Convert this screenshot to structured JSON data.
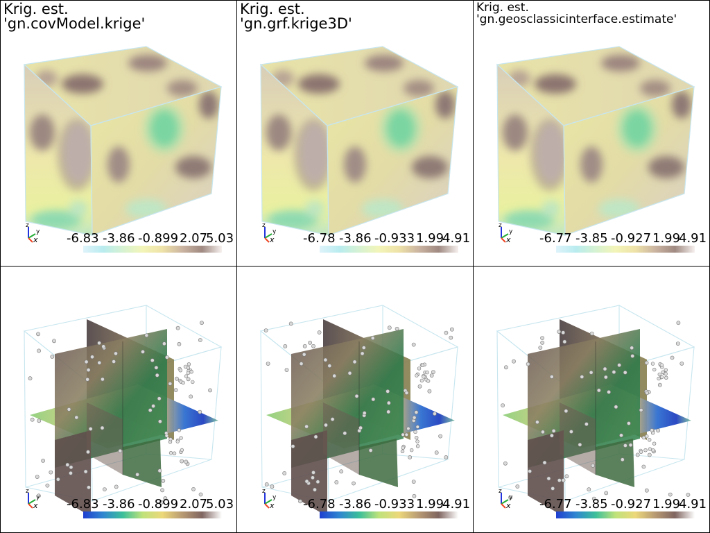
{
  "panels": [
    {
      "title_line1": "Krig. est.",
      "title_line2": "'gn.covModel.krige'",
      "ticks": [
        "-6.83",
        "-3.86",
        "-0.899",
        "2.07",
        "5.03"
      ],
      "colorbar": [
        "#dff3fb",
        "#b9ecef",
        "#d6f2d2",
        "#f3f5b8",
        "#eee2a8",
        "#cbb4a1",
        "#a08a82",
        "#f6f0ee"
      ],
      "style": "pale cube"
    },
    {
      "title_line1": "Krig. est.",
      "title_line2": "'gn.grf.krige3D'",
      "ticks": [
        "-6.78",
        "-3.86",
        "-0.933",
        "1.99",
        "4.91"
      ],
      "colorbar": [
        "#dff3fb",
        "#b9ecef",
        "#d6f2d2",
        "#f3f5b8",
        "#eee2a8",
        "#cbb4a1",
        "#a08a82",
        "#f6f0ee"
      ],
      "style": "pale cube"
    },
    {
      "title_line1": "Krig. est.",
      "title_line2": "'gn.geosclassicinterface.estimate'",
      "ticks": [
        "-6.77",
        "-3.85",
        "-0.927",
        "1.99",
        "4.91"
      ],
      "colorbar": [
        "#dff3fb",
        "#b9ecef",
        "#d6f2d2",
        "#f3f5b8",
        "#eee2a8",
        "#cbb4a1",
        "#a08a82",
        "#f6f0ee"
      ],
      "style": "pale cube"
    },
    {
      "title_line1": "",
      "title_line2": "",
      "ticks": [
        "-6.83",
        "-3.86",
        "-0.899",
        "2.07",
        "5.03"
      ],
      "colorbar": [
        "#1f3fd0",
        "#2f86d0",
        "#3cbf9a",
        "#bfe27a",
        "#ecd87a",
        "#b89a73",
        "#7f6560",
        "#ffffff"
      ],
      "style": "slices"
    },
    {
      "title_line1": "",
      "title_line2": "",
      "ticks": [
        "-6.78",
        "-3.86",
        "-0.933",
        "1.99",
        "4.91"
      ],
      "colorbar": [
        "#1f3fd0",
        "#2f86d0",
        "#3cbf9a",
        "#bfe27a",
        "#ecd87a",
        "#b89a73",
        "#7f6560",
        "#ffffff"
      ],
      "style": "slices"
    },
    {
      "title_line1": "",
      "title_line2": "",
      "ticks": [
        "-6.77",
        "-3.85",
        "-0.927",
        "1.99",
        "4.91"
      ],
      "colorbar": [
        "#1f3fd0",
        "#2f86d0",
        "#3cbf9a",
        "#bfe27a",
        "#ecd87a",
        "#b89a73",
        "#7f6560",
        "#ffffff"
      ],
      "style": "slices"
    }
  ],
  "axes_labels": {
    "x": "x",
    "y": "y",
    "z": "z"
  }
}
